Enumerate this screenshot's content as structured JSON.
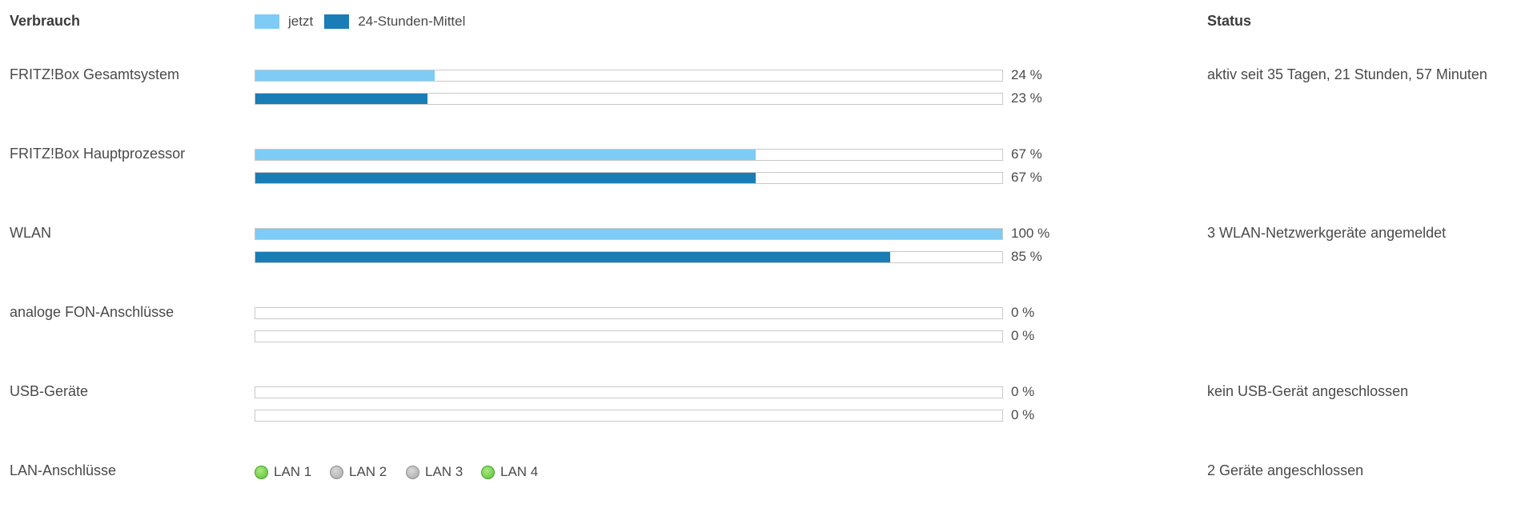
{
  "header": {
    "verbrauch": "Verbrauch",
    "status": "Status",
    "legend": [
      {
        "label": "jetzt",
        "color": "#7ecbf5"
      },
      {
        "label": "24-Stunden-Mittel",
        "color": "#1a7db5"
      }
    ]
  },
  "rows": [
    {
      "label": "FRITZ!Box Gesamtsystem",
      "now": 24,
      "now_text": "24 %",
      "avg": 23,
      "avg_text": "23 %",
      "status": "aktiv seit 35 Tagen, 21 Stunden, 57 Minuten"
    },
    {
      "label": "FRITZ!Box Hauptprozessor",
      "now": 67,
      "now_text": "67 %",
      "avg": 67,
      "avg_text": "67 %",
      "status": ""
    },
    {
      "label": "WLAN",
      "now": 100,
      "now_text": "100 %",
      "avg": 85,
      "avg_text": "85 %",
      "status": "3 WLAN-Netzwerkgeräte angemeldet"
    },
    {
      "label": "analoge FON-Anschlüsse",
      "now": 0,
      "now_text": "0 %",
      "avg": 0,
      "avg_text": "0 %",
      "status": ""
    },
    {
      "label": "USB-Geräte",
      "now": 0,
      "now_text": "0 %",
      "avg": 0,
      "avg_text": "0 %",
      "status": "kein USB-Gerät angeschlossen"
    }
  ],
  "lan": {
    "label": "LAN-Anschlüsse",
    "status": "2 Geräte angeschlossen",
    "ports": [
      {
        "name": "LAN 1",
        "active": true
      },
      {
        "name": "LAN 2",
        "active": false
      },
      {
        "name": "LAN 3",
        "active": false
      },
      {
        "name": "LAN 4",
        "active": true
      }
    ]
  }
}
